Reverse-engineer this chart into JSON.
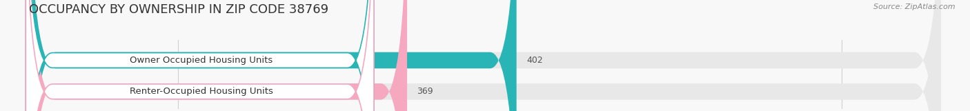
{
  "title": "OCCUPANCY BY OWNERSHIP IN ZIP CODE 38769",
  "source_text": "Source: ZipAtlas.com",
  "categories": [
    "Owner Occupied Housing Units",
    "Renter-Occupied Housing Units"
  ],
  "values": [
    402,
    369
  ],
  "bar_colors": [
    "#29b5b5",
    "#f5a8c0"
  ],
  "xlim_min": 255,
  "xlim_max": 530,
  "xticks": [
    300,
    400,
    500
  ],
  "bar_height": 0.52,
  "title_fontsize": 13,
  "tick_fontsize": 9,
  "label_fontsize": 9.5,
  "value_fontsize": 9,
  "background_color": "#f8f8f8",
  "bar_bg_color": "#e8e8e8",
  "grid_color": "#d0d0d0",
  "text_color": "#333333",
  "source_color": "#888888",
  "value_color": "#555555",
  "tick_color": "#888888"
}
